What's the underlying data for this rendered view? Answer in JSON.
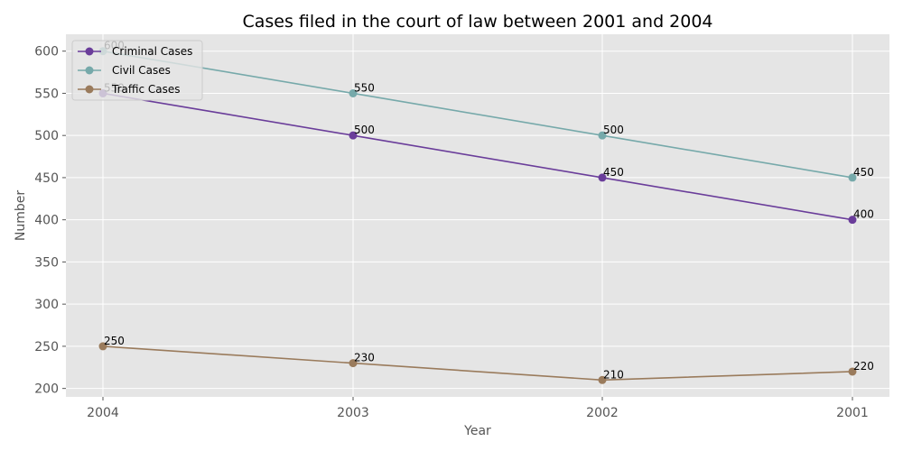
{
  "chart_data": {
    "type": "line",
    "title": "Cases filed in the court of law between 2001 and 2004",
    "xlabel": "Year",
    "ylabel": "Number",
    "categories": [
      "2004",
      "2003",
      "2002",
      "2001"
    ],
    "ylim": [
      190,
      620
    ],
    "yticks": [
      200,
      250,
      300,
      350,
      400,
      450,
      500,
      550,
      600
    ],
    "grid": true,
    "legend_position": "top-left",
    "background": "#e5e5e5",
    "series": [
      {
        "name": "Criminal Cases",
        "color": "#6a3d9a",
        "values": [
          550,
          500,
          450,
          400
        ],
        "labels": [
          "550",
          "500",
          "450",
          "400"
        ]
      },
      {
        "name": "Civil Cases",
        "color": "#76a9aa",
        "values": [
          600,
          550,
          500,
          450
        ],
        "labels": [
          "600",
          "550",
          "500",
          "450"
        ]
      },
      {
        "name": "Traffic Cases",
        "color": "#9a7b5c",
        "values": [
          250,
          230,
          210,
          220
        ],
        "labels": [
          "250",
          "230",
          "210",
          "220"
        ]
      }
    ]
  }
}
